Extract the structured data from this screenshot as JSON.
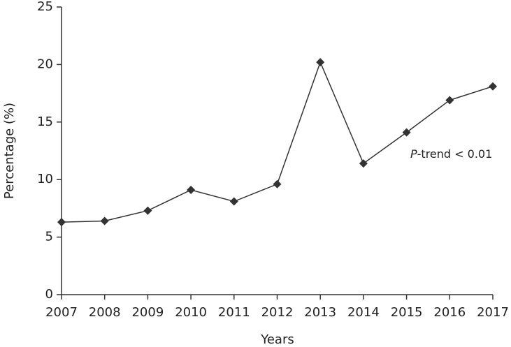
{
  "chart_data": {
    "type": "line",
    "x_label": "Years",
    "y_label": "Percentage (%)",
    "annotation": {
      "italic": "P",
      "text": "-trend < 0.01"
    },
    "x": [
      2007,
      2008,
      2009,
      2010,
      2011,
      2012,
      2013,
      2014,
      2015,
      2016,
      2017
    ],
    "series": [
      {
        "color": "#333333",
        "values": [
          6.3,
          6.4,
          7.3,
          9.1,
          8.1,
          9.6,
          20.2,
          11.4,
          14.1,
          16.9,
          18.1
        ]
      }
    ],
    "xlim": [
      2007,
      2017
    ],
    "xticks": [
      2007,
      2008,
      2009,
      2010,
      2011,
      2012,
      2013,
      2014,
      2015,
      2016,
      2017
    ],
    "ylim": [
      0,
      25
    ],
    "yticks": [
      0,
      5,
      10,
      15,
      20,
      25
    ],
    "grid": false
  }
}
